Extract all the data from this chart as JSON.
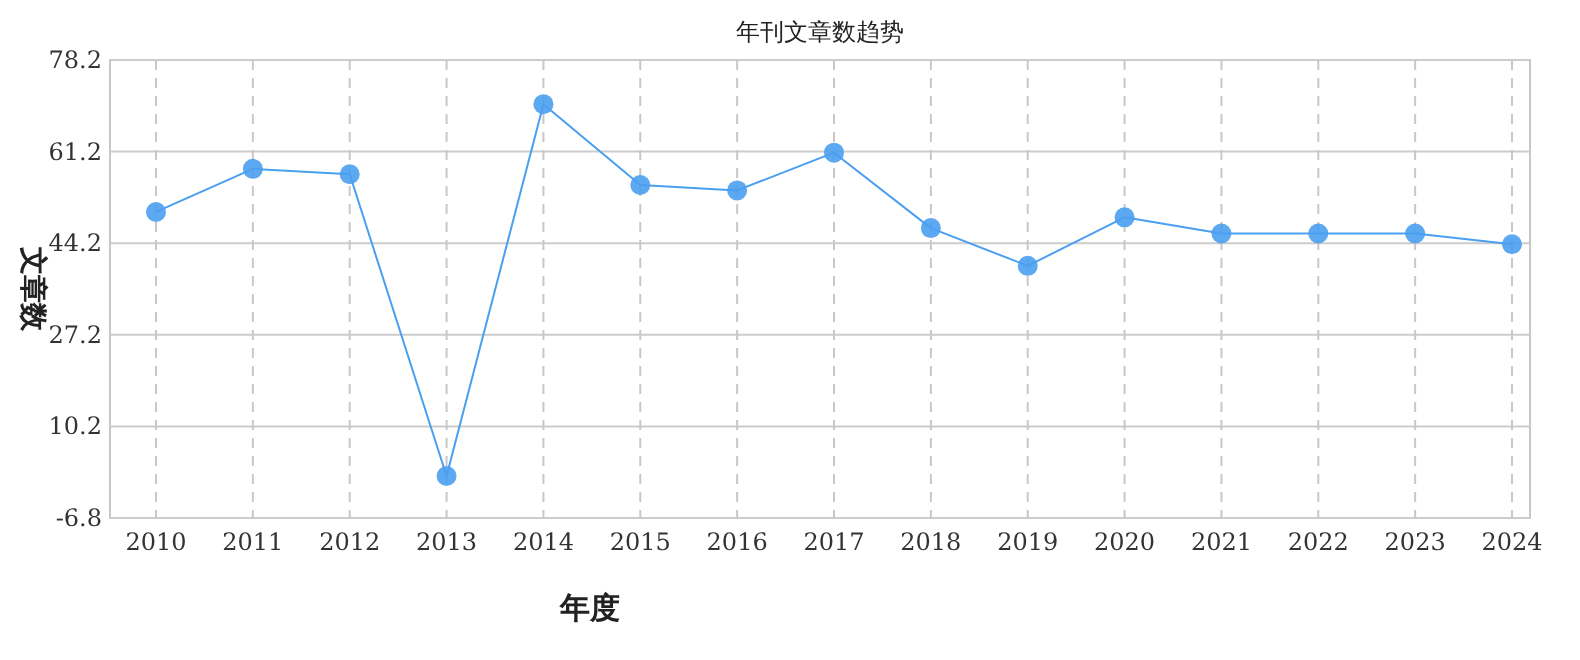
{
  "chart_data": {
    "type": "line",
    "title": "年刊文章数趋势",
    "xlabel": "年度",
    "ylabel": "文章数",
    "categories": [
      "2010",
      "2011",
      "2012",
      "2013",
      "2014",
      "2015",
      "2016",
      "2017",
      "2018",
      "2019",
      "2020",
      "2021",
      "2022",
      "2023",
      "2024"
    ],
    "values": [
      50,
      58,
      57,
      1,
      70,
      55,
      54,
      61,
      47,
      40,
      49,
      46,
      46,
      46,
      44
    ],
    "color": "#4a9ff0",
    "marker": "circle",
    "grid": true,
    "ylim": [
      -6.8,
      78.2
    ],
    "yticks": [
      -6.8,
      10.2,
      27.2,
      44.2,
      61.2,
      78.2
    ]
  }
}
